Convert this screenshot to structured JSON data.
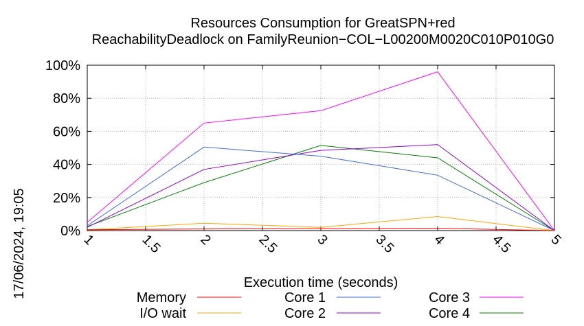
{
  "chart_data": {
    "type": "line",
    "title": "Resources Consumption for GreatSPN+red",
    "subtitle": "ReachabilityDeadlock on FamilyReunion−COL−L00200M0020C010P010G0",
    "xlabel": "Execution time (seconds)",
    "ylabel": "",
    "side_label": "17/06/2024, 19:05",
    "xlim": [
      1,
      5
    ],
    "ylim": [
      0,
      100
    ],
    "x_ticks": [
      "1",
      "1.5",
      "2",
      "2.5",
      "3",
      "3.5",
      "4",
      "4.5",
      "5"
    ],
    "x_tick_values": [
      1,
      1.5,
      2,
      2.5,
      3,
      3.5,
      4,
      4.5,
      5
    ],
    "y_ticks": [
      "0%",
      "20%",
      "40%",
      "60%",
      "80%",
      "100%"
    ],
    "y_tick_values": [
      0,
      20,
      40,
      60,
      80,
      100
    ],
    "grid": true,
    "legend_placement": "bottom",
    "x": [
      1,
      2,
      3,
      4,
      5
    ],
    "series": [
      {
        "name": "Memory",
        "color": "#ff0000",
        "values": [
          0.5,
          1.0,
          1.2,
          1.4,
          0
        ]
      },
      {
        "name": "I/O wait",
        "color": "#ffa500",
        "values": [
          0.5,
          4.5,
          2.0,
          8.5,
          0
        ]
      },
      {
        "name": "Core 1",
        "color": "#4169e1",
        "values": [
          3.0,
          50.5,
          45.0,
          33.5,
          0
        ]
      },
      {
        "name": "Core 2",
        "color": "#9400d3",
        "values": [
          2.0,
          37.0,
          48.5,
          52.0,
          0
        ]
      },
      {
        "name": "Core 3",
        "color": "#ff00ff",
        "values": [
          5.0,
          65.0,
          72.5,
          96.0,
          0
        ]
      },
      {
        "name": "Core 4",
        "color": "#008000",
        "values": [
          2.5,
          29.0,
          51.5,
          44.0,
          0
        ]
      }
    ]
  }
}
